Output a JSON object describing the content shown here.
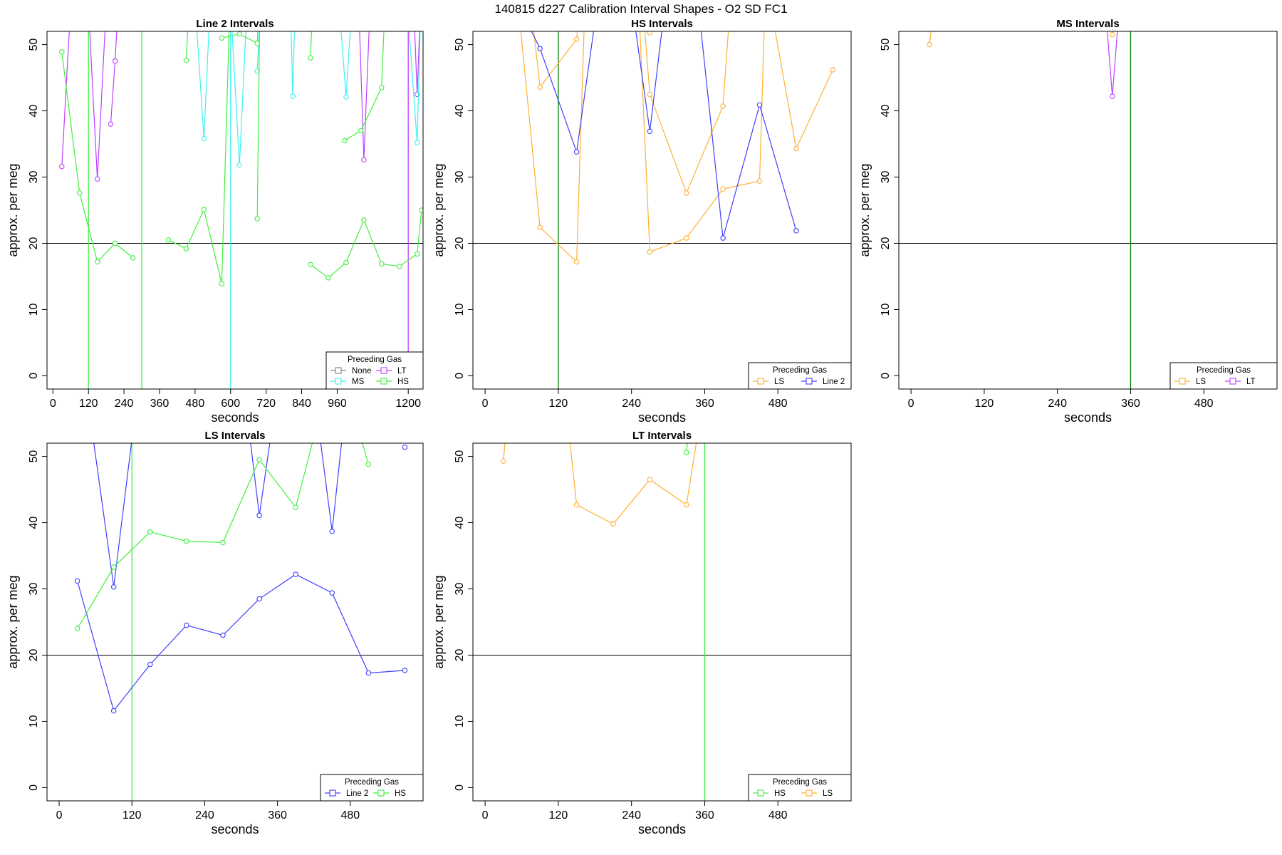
{
  "figure": {
    "title": "140815   d227   Calibration Interval Shapes - O2 SD FC1"
  },
  "colors": {
    "None": "#808080",
    "LT": "#bf3fff",
    "MS": "#3ff0f0",
    "HS": "#3ff03f",
    "LS": "#ffb030",
    "Line 2": "#3f3fff",
    "reference_line": "#000000",
    "marker_line": "#008000"
  },
  "chart_data": [
    {
      "type": "line",
      "title": "Line 2 Intervals",
      "xlabel": "seconds",
      "ylabel": "approx. per meg",
      "xlim": [
        -20,
        1250
      ],
      "ylim": [
        -2,
        52
      ],
      "xticks": [
        0,
        120,
        240,
        360,
        480,
        600,
        720,
        840,
        960,
        1200
      ],
      "yticks": [
        0,
        10,
        20,
        30,
        40,
        50
      ],
      "hline": 20,
      "vlines": [
        {
          "x": 120,
          "color": "HS"
        },
        {
          "x": 300,
          "color": "HS"
        },
        {
          "x": 600,
          "color": "MS"
        },
        {
          "x": 1200,
          "color": "LT"
        }
      ],
      "legend": {
        "title": "Preceding Gas",
        "entries": [
          "None",
          "LT",
          "MS",
          "HS"
        ],
        "columns": 2,
        "position": "bottom-right"
      },
      "series": [
        {
          "name": "LT",
          "segments": [
            [
              [
                30,
                31.6
              ],
              [
                65,
                60
              ]
            ],
            [
              [
                115,
                60
              ],
              [
                150,
                29.7
              ],
              [
                185,
                60
              ]
            ],
            [
              [
                195,
                38
              ],
              [
                210,
                47.5
              ],
              [
                225,
                60
              ]
            ],
            [
              [
                1030,
                60
              ],
              [
                1050,
                32.6
              ],
              [
                1075,
                60
              ]
            ],
            [
              [
                1215,
                60
              ],
              [
                1230,
                42.5
              ],
              [
                1245,
                60
              ]
            ]
          ]
        },
        {
          "name": "MS",
          "segments": [
            [
              [
                475,
                60
              ],
              [
                510,
                35.8
              ],
              [
                535,
                60
              ]
            ],
            [
              [
                595,
                60
              ],
              [
                630,
                31.8
              ],
              [
                660,
                60
              ]
            ],
            [
              [
                690,
                46
              ],
              [
                705,
                60
              ]
            ],
            [
              [
                800,
                60
              ],
              [
                810,
                42.2
              ],
              [
                820,
                60
              ]
            ],
            [
              [
                960,
                60
              ],
              [
                990,
                42.1
              ],
              [
                1015,
                60
              ]
            ],
            [
              [
                1190,
                60
              ],
              [
                1230,
                35.2
              ],
              [
                1245,
                60
              ]
            ]
          ]
        },
        {
          "name": "HS",
          "segments": [
            [
              [
                30,
                48.9
              ],
              [
                90,
                27.6
              ],
              [
                150,
                17.2
              ],
              [
                210,
                20.0
              ],
              [
                270,
                17.8
              ]
            ],
            [
              [
                390,
                20.5
              ],
              [
                450,
                19.2
              ],
              [
                510,
                25.1
              ],
              [
                570,
                13.9
              ],
              [
                600,
                60
              ]
            ],
            [
              [
                690,
                23.7
              ],
              [
                700,
                60
              ]
            ],
            [
              [
                450,
                47.6
              ],
              [
                465,
                60
              ]
            ],
            [
              [
                570,
                51.0
              ],
              [
                630,
                51.6
              ],
              [
                690,
                50.2
              ],
              [
                700,
                60
              ]
            ],
            [
              [
                870,
                16.8
              ],
              [
                930,
                14.8
              ],
              [
                990,
                17.1
              ],
              [
                1050,
                23.5
              ],
              [
                1110,
                16.9
              ],
              [
                1170,
                16.5
              ],
              [
                1230,
                18.4
              ],
              [
                1245,
                25
              ]
            ],
            [
              [
                870,
                48.0
              ],
              [
                880,
                60
              ]
            ],
            [
              [
                985,
                35.5
              ],
              [
                1040,
                37.0
              ],
              [
                1110,
                43.5
              ],
              [
                1125,
                60
              ]
            ]
          ]
        }
      ]
    },
    {
      "type": "line",
      "title": "HS Intervals",
      "xlabel": "seconds",
      "ylabel": "approx. per meg",
      "xlim": [
        -20,
        600
      ],
      "ylim": [
        -2,
        52
      ],
      "xticks": [
        0,
        120,
        240,
        360,
        480
      ],
      "yticks": [
        0,
        10,
        20,
        30,
        40,
        50
      ],
      "hline": 20,
      "vlines": [
        {
          "x": 120,
          "color": "marker_line"
        }
      ],
      "legend": {
        "title": "Preceding Gas",
        "entries": [
          "LS",
          "Line 2"
        ],
        "columns": 2,
        "position": "bottom-right"
      },
      "series": [
        {
          "name": "LS",
          "segments": [
            [
              [
                50,
                60
              ],
              [
                90,
                22.4
              ],
              [
                150,
                17.2
              ],
              [
                165,
                60
              ]
            ],
            [
              [
                70,
                60
              ],
              [
                90,
                43.6
              ],
              [
                150,
                50.8
              ],
              [
                160,
                60
              ]
            ],
            [
              [
                255,
                60
              ],
              [
                270,
                51.8
              ],
              [
                285,
                60
              ]
            ],
            [
              [
                255,
                60
              ],
              [
                270,
                42.5
              ],
              [
                330,
                27.6
              ],
              [
                390,
                40.7
              ],
              [
                405,
                60
              ]
            ],
            [
              [
                250,
                60
              ],
              [
                270,
                18.7
              ],
              [
                330,
                20.8
              ],
              [
                390,
                28.2
              ],
              [
                450,
                29.4
              ],
              [
                460,
                60
              ]
            ],
            [
              [
                460,
                60
              ],
              [
                510,
                34.3
              ],
              [
                570,
                46.2
              ]
            ]
          ]
        },
        {
          "name": "Line 2",
          "segments": [
            [
              [
                60,
                55
              ],
              [
                90,
                49.4
              ],
              [
                150,
                33.8
              ],
              [
                190,
                60
              ]
            ],
            [
              [
                235,
                60
              ],
              [
                270,
                36.9
              ],
              [
                300,
                60
              ]
            ],
            [
              [
                345,
                60
              ],
              [
                390,
                20.8
              ],
              [
                450,
                40.9
              ],
              [
                510,
                21.9
              ]
            ]
          ]
        }
      ]
    },
    {
      "type": "line",
      "title": "MS Intervals",
      "xlabel": "seconds",
      "ylabel": "approx. per meg",
      "xlim": [
        -20,
        600
      ],
      "ylim": [
        -2,
        52
      ],
      "xticks": [
        0,
        120,
        240,
        360,
        480
      ],
      "yticks": [
        0,
        10,
        20,
        30,
        40,
        50
      ],
      "hline": 20,
      "vlines": [
        {
          "x": 360,
          "color": "marker_line"
        }
      ],
      "legend": {
        "title": "Preceding Gas",
        "entries": [
          "LS",
          "LT"
        ],
        "columns": 2,
        "position": "bottom-right"
      },
      "series": [
        {
          "name": "LS",
          "segments": [
            [
              [
                30,
                50.0
              ],
              [
                45,
                60
              ]
            ],
            [
              [
                325,
                60
              ],
              [
                330,
                51.5
              ],
              [
                345,
                60
              ]
            ]
          ]
        },
        {
          "name": "LT",
          "segments": [
            [
              [
                315,
                60
              ],
              [
                330,
                42.2
              ],
              [
                345,
                60
              ]
            ]
          ]
        }
      ]
    },
    {
      "type": "line",
      "title": "LS Intervals",
      "xlabel": "seconds",
      "ylabel": "approx. per meg",
      "xlim": [
        -20,
        600
      ],
      "ylim": [
        -2,
        52
      ],
      "xticks": [
        0,
        120,
        240,
        360,
        480
      ],
      "yticks": [
        0,
        10,
        20,
        30,
        40,
        50
      ],
      "hline": 20,
      "vlines": [
        {
          "x": 120,
          "color": "HS"
        }
      ],
      "legend": {
        "title": "Preceding Gas",
        "entries": [
          "Line 2",
          "HS"
        ],
        "columns": 2,
        "position": "bottom-right"
      },
      "series": [
        {
          "name": "Line 2",
          "segments": [
            [
              [
                30,
                31.2
              ],
              [
                90,
                11.6
              ],
              [
                150,
                18.6
              ],
              [
                210,
                24.5
              ],
              [
                270,
                23.0
              ],
              [
                330,
                28.5
              ],
              [
                390,
                32.2
              ],
              [
                450,
                29.4
              ],
              [
                510,
                17.3
              ],
              [
                570,
                17.7
              ]
            ],
            [
              [
                45,
                60
              ],
              [
                90,
                30.3
              ],
              [
                130,
                60
              ]
            ],
            [
              [
                305,
                60
              ],
              [
                330,
                41.1
              ],
              [
                360,
                60
              ]
            ],
            [
              [
                420,
                60
              ],
              [
                450,
                38.7
              ],
              [
                475,
                60
              ]
            ],
            [
              [
                570,
                51.4
              ]
            ]
          ]
        },
        {
          "name": "HS",
          "segments": [
            [
              [
                30,
                24.0
              ],
              [
                90,
                33.3
              ],
              [
                150,
                38.6
              ],
              [
                210,
                37.2
              ],
              [
                270,
                37.0
              ],
              [
                330,
                49.5
              ],
              [
                390,
                42.3
              ],
              [
                440,
                60
              ]
            ],
            [
              [
                475,
                60
              ],
              [
                510,
                48.8
              ]
            ]
          ]
        }
      ]
    },
    {
      "type": "line",
      "title": "LT Intervals",
      "xlabel": "seconds",
      "ylabel": "approx. per meg",
      "xlim": [
        -20,
        600
      ],
      "ylim": [
        -2,
        52
      ],
      "xticks": [
        0,
        120,
        240,
        360,
        480
      ],
      "yticks": [
        0,
        10,
        20,
        30,
        40,
        50
      ],
      "hline": 20,
      "vlines": [
        {
          "x": 360,
          "color": "HS"
        }
      ],
      "legend": {
        "title": "Preceding Gas",
        "entries": [
          "HS",
          "LS"
        ],
        "columns": 2,
        "position": "bottom-right"
      },
      "series": [
        {
          "name": "HS",
          "segments": [
            [
              [
                330,
                50.6
              ],
              [
                340,
                60
              ]
            ]
          ]
        },
        {
          "name": "LS",
          "segments": [
            [
              [
                30,
                49.3
              ],
              [
                40,
                60
              ]
            ],
            [
              [
                130,
                60
              ],
              [
                150,
                42.7
              ],
              [
                210,
                39.8
              ],
              [
                270,
                46.5
              ],
              [
                330,
                42.7
              ],
              [
                360,
                60
              ]
            ]
          ]
        }
      ]
    }
  ]
}
